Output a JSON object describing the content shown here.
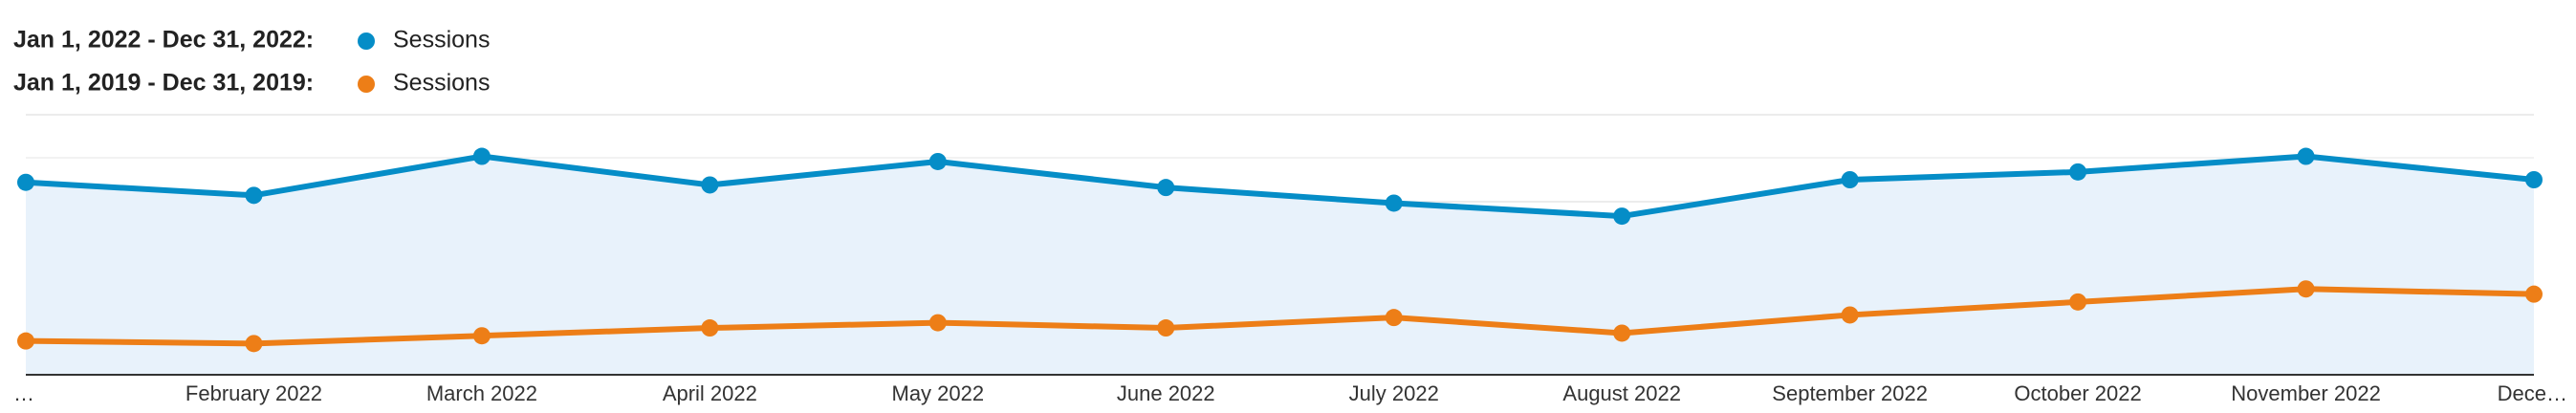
{
  "chart_data": {
    "type": "line",
    "categories": [
      "…",
      "February 2022",
      "March 2022",
      "April 2022",
      "May 2022",
      "June 2022",
      "July 2022",
      "August 2022",
      "September 2022",
      "October 2022",
      "November 2022",
      "Dece…"
    ],
    "series": [
      {
        "period": "Jan 1, 2022 - Dec 31, 2022:",
        "name": "Sessions",
        "color": "#058dc7",
        "area": true,
        "values": [
          74,
          69,
          84,
          73,
          82,
          72,
          66,
          61,
          75,
          78,
          84,
          75
        ]
      },
      {
        "period": "Jan 1, 2019 - Dec 31, 2019:",
        "name": "Sessions",
        "color": "#ed7e17",
        "area": false,
        "values": [
          13,
          12,
          15,
          18,
          20,
          18,
          22,
          16,
          23,
          28,
          33,
          31
        ]
      }
    ],
    "ylim": [
      0,
      100
    ]
  }
}
